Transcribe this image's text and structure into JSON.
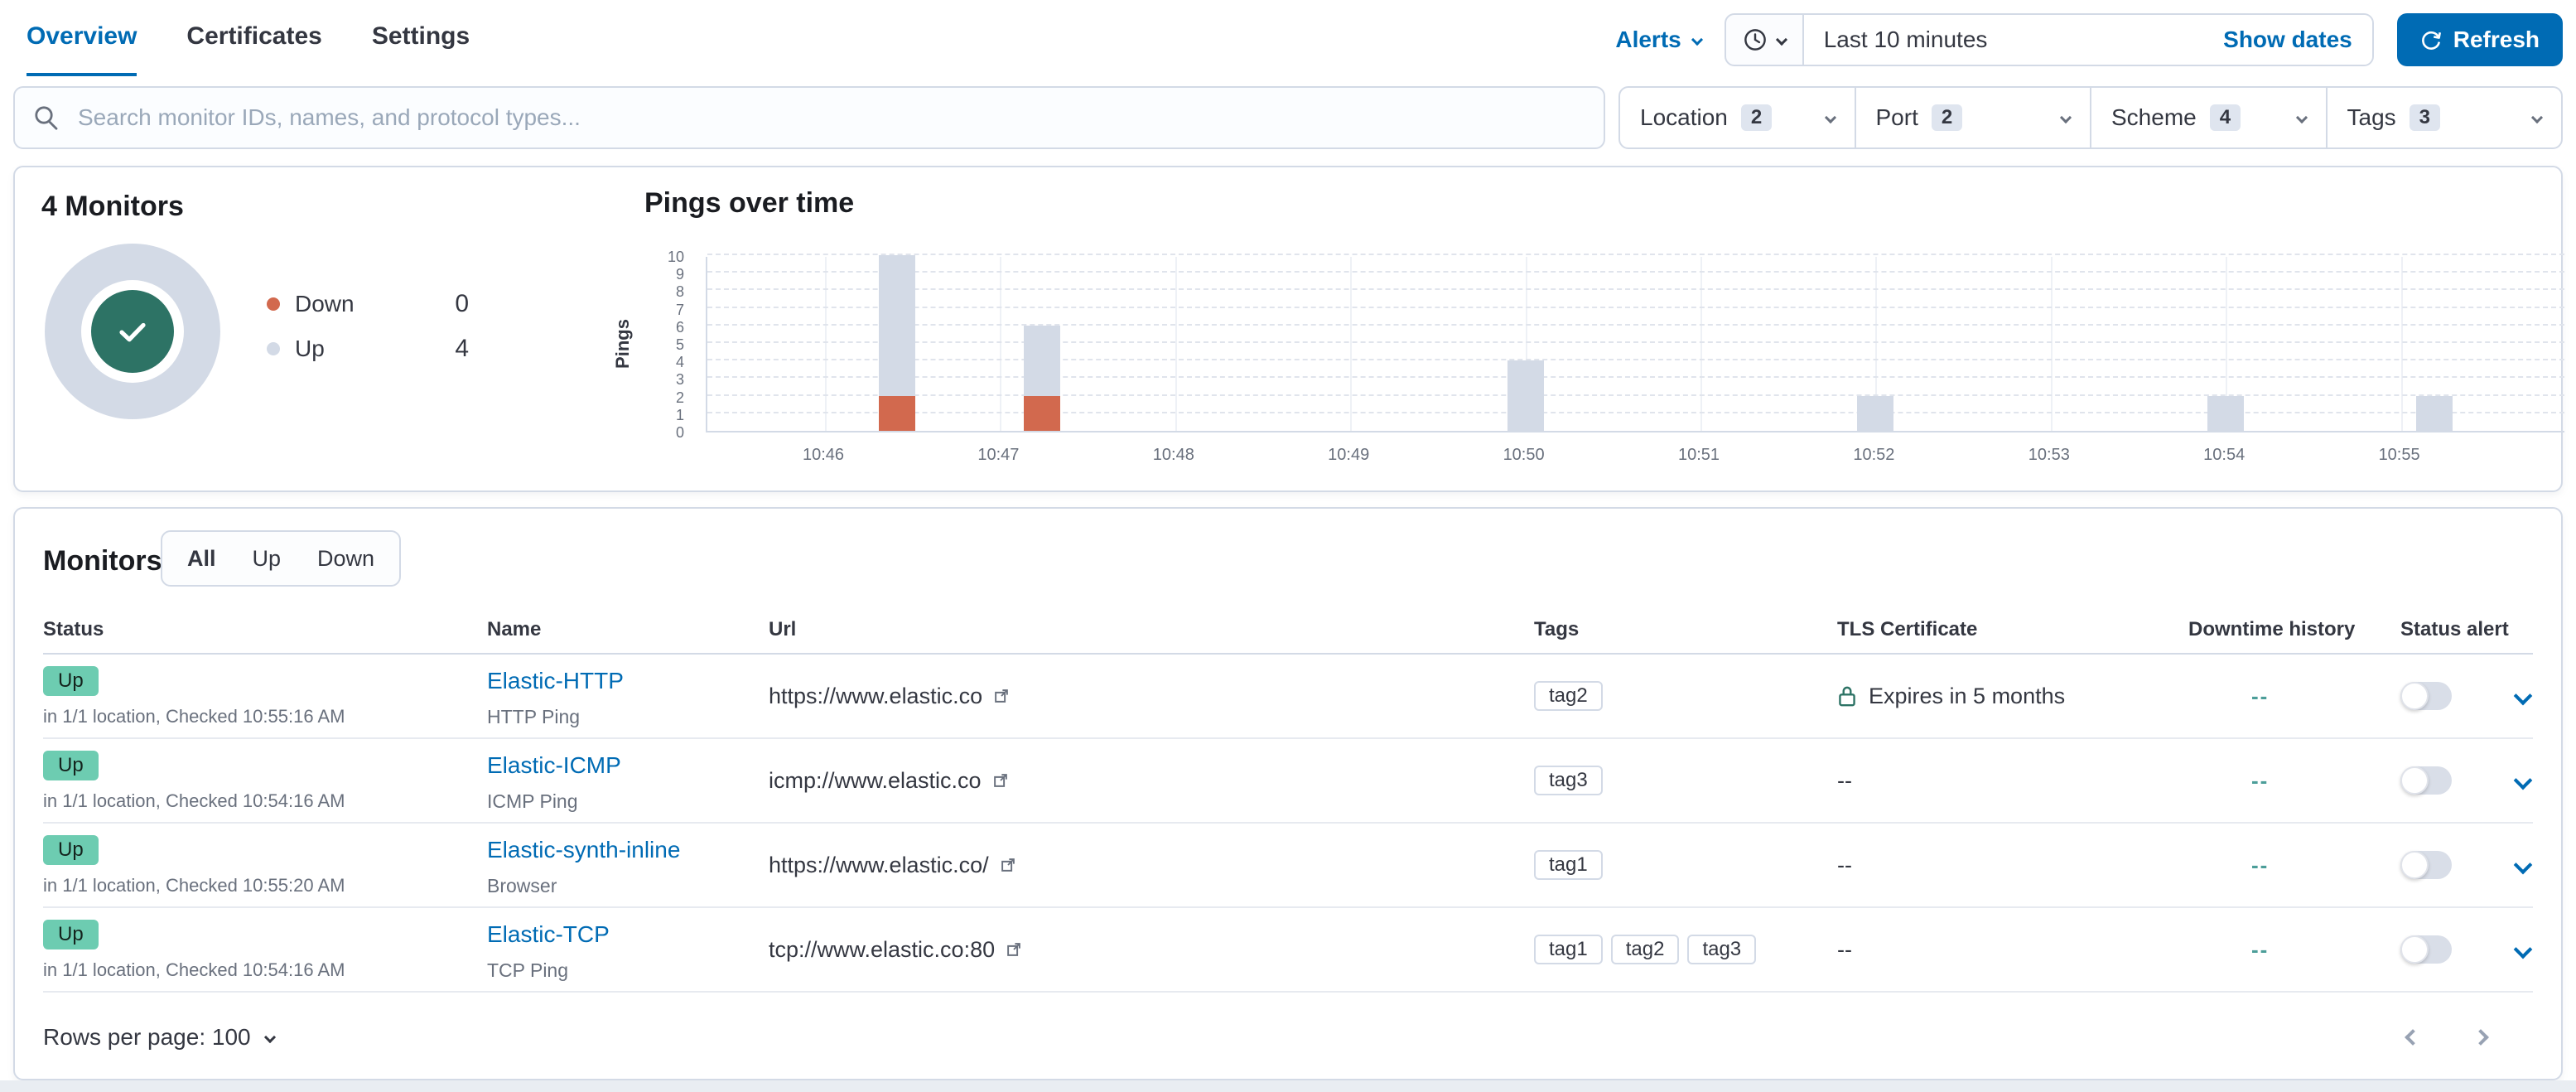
{
  "nav": {
    "tabs": [
      {
        "label": "Overview",
        "active": true
      },
      {
        "label": "Certificates",
        "active": false
      },
      {
        "label": "Settings",
        "active": false
      }
    ],
    "alerts_label": "Alerts",
    "time_range": "Last 10 minutes",
    "show_dates_label": "Show dates",
    "refresh_label": "Refresh",
    "refresh_color": "#006BB4"
  },
  "search": {
    "placeholder": "Search monitor IDs, names, and protocol types..."
  },
  "filters": [
    {
      "label": "Location",
      "count": "2"
    },
    {
      "label": "Port",
      "count": "2"
    },
    {
      "label": "Scheme",
      "count": "4"
    },
    {
      "label": "Tags",
      "count": "3"
    }
  ],
  "summary": {
    "title": "4 Monitors",
    "donut": {
      "ring_color": "#d3dae6",
      "center_color": "#2d7365",
      "icon": "check"
    },
    "legend": [
      {
        "label": "Down",
        "value": "0",
        "color": "#d2694e"
      },
      {
        "label": "Up",
        "value": "4",
        "color": "#d3dae6"
      }
    ]
  },
  "chart_data": {
    "type": "bar",
    "stacked": true,
    "title": "Pings over time",
    "xlabel": "",
    "ylabel": "Pings",
    "ylim": [
      0,
      10
    ],
    "yticks": [
      0,
      1,
      2,
      3,
      4,
      5,
      6,
      7,
      8,
      9,
      10
    ],
    "xticks": [
      "10:46",
      "10:47",
      "10:48",
      "10:49",
      "10:50",
      "10:51",
      "10:52",
      "10:53",
      "10:54",
      "10:55"
    ],
    "grid": "dashed-horizontal",
    "legend_position": "none",
    "colors": {
      "up": "#d3dae6",
      "down": "#d2694e"
    },
    "bars": [
      {
        "x_offset_min": 0.41,
        "down": 2,
        "up": 8
      },
      {
        "x_offset_min": 1.24,
        "down": 2,
        "up": 4
      },
      {
        "x_offset_min": 4.0,
        "down": 0,
        "up": 4
      },
      {
        "x_offset_min": 6.0,
        "down": 0,
        "up": 2
      },
      {
        "x_offset_min": 8.0,
        "down": 0,
        "up": 2
      },
      {
        "x_offset_min": 9.19,
        "down": 0,
        "up": 2
      }
    ]
  },
  "monitors": {
    "title": "Monitors",
    "view_tabs": [
      {
        "label": "All",
        "selected": true
      },
      {
        "label": "Up",
        "selected": false
      },
      {
        "label": "Down",
        "selected": false
      }
    ],
    "columns": [
      "Status",
      "Name",
      "Url",
      "Tags",
      "TLS Certificate",
      "Downtime history",
      "Status alert"
    ],
    "status_badge_color": "#6dccb1",
    "downtime_color": "#4c9e99",
    "rows": [
      {
        "status": "Up",
        "status_detail": "in 1/1 location, Checked 10:55:16 AM",
        "name": "Elastic-HTTP",
        "type": "HTTP Ping",
        "url": "https://www.elastic.co",
        "tags": [
          "tag2"
        ],
        "tls": "Expires in 5 months",
        "tls_lock": true,
        "downtime": "--",
        "alert_on": false
      },
      {
        "status": "Up",
        "status_detail": "in 1/1 location, Checked 10:54:16 AM",
        "name": "Elastic-ICMP",
        "type": "ICMP Ping",
        "url": "icmp://www.elastic.co",
        "tags": [
          "tag3"
        ],
        "tls": "--",
        "tls_lock": false,
        "downtime": "--",
        "alert_on": false
      },
      {
        "status": "Up",
        "status_detail": "in 1/1 location, Checked 10:55:20 AM",
        "name": "Elastic-synth-inline",
        "type": "Browser",
        "url": "https://www.elastic.co/",
        "tags": [
          "tag1"
        ],
        "tls": "--",
        "tls_lock": false,
        "downtime": "--",
        "alert_on": false
      },
      {
        "status": "Up",
        "status_detail": "in 1/1 location, Checked 10:54:16 AM",
        "name": "Elastic-TCP",
        "type": "TCP Ping",
        "url": "tcp://www.elastic.co:80",
        "tags": [
          "tag1",
          "tag2",
          "tag3"
        ],
        "tls": "--",
        "tls_lock": false,
        "downtime": "--",
        "alert_on": false
      }
    ],
    "rows_per_page_label": "Rows per page:",
    "rows_per_page_value": "100"
  }
}
